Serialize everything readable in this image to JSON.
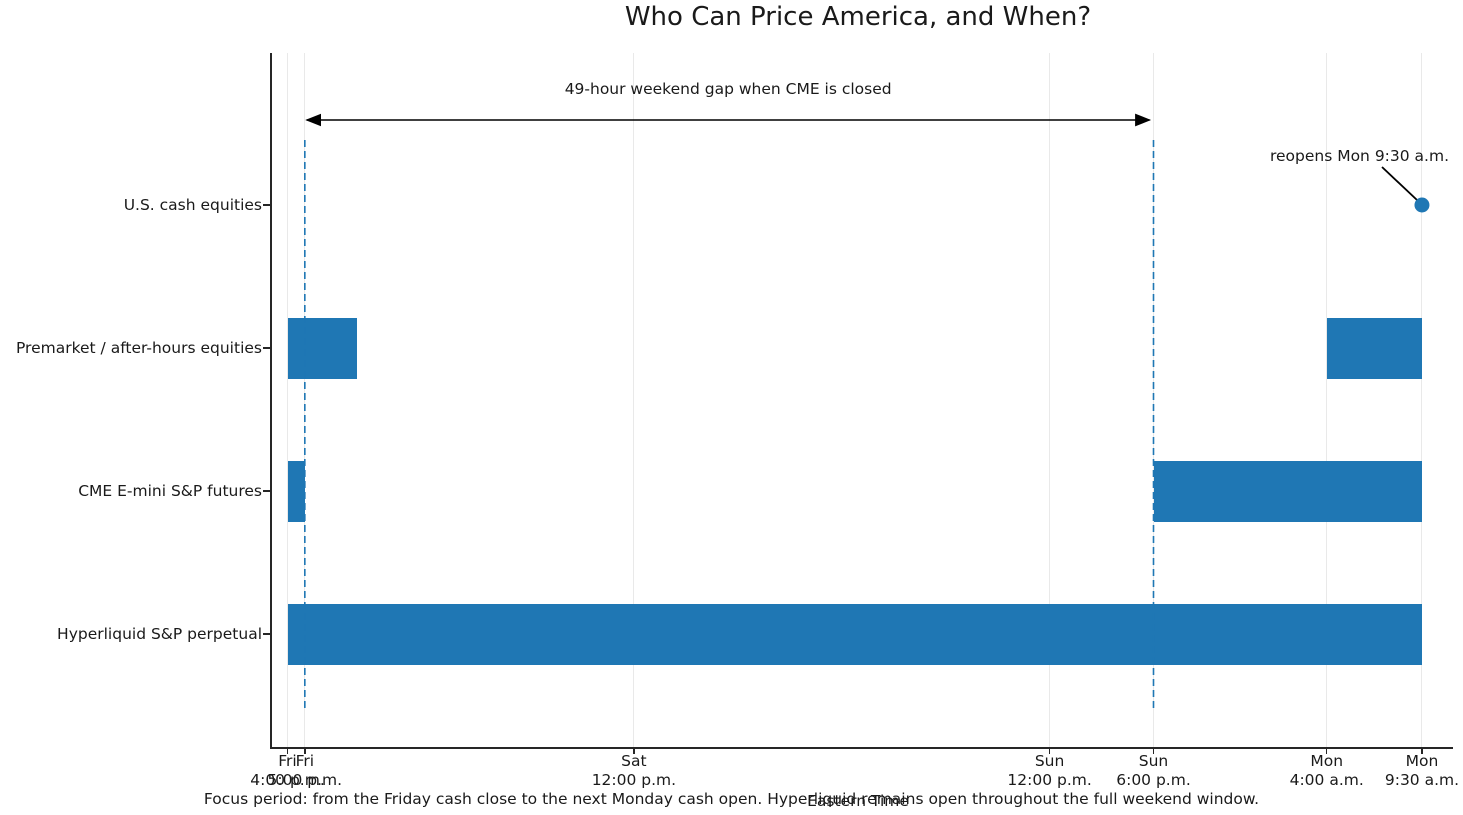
{
  "title": "Who Can Price America, and When?",
  "xlabel": "Eastern Time",
  "footer": "Focus period: from the Friday cash close to the next Monday cash open. Hyperliquid remains open throughout the full weekend window.",
  "annotations": {
    "gap_label": "49-hour weekend gap when CME is closed",
    "reopen_label": "reopens Mon 9:30 a.m."
  },
  "colors": {
    "bar": "#1f77b4",
    "dashed_line": "#1f77b4",
    "marker": "#1f77b4",
    "arrow": "#000000",
    "grid": "#e9e9e9",
    "text": "#1a1a1a"
  },
  "chart_data": {
    "type": "bar",
    "subtype": "horizontal-timeline (broken_barh gantt)",
    "x_unit": "hours since Friday 4:00 p.m. Eastern Time",
    "xlim": [
      -1,
      67.3
    ],
    "grid": "vertical gridlines at each x tick",
    "legend": "none",
    "ticks": [
      {
        "hour": 0,
        "day": "Fri",
        "time": "4:00 p.m."
      },
      {
        "hour": 1,
        "day": "Fri",
        "time": "5:00 p.m."
      },
      {
        "hour": 20,
        "day": "Sat",
        "time": "12:00 p.m."
      },
      {
        "hour": 44,
        "day": "Sun",
        "time": "12:00 p.m."
      },
      {
        "hour": 50,
        "day": "Sun",
        "time": "6:00 p.m."
      },
      {
        "hour": 60,
        "day": "Mon",
        "time": "4:00 a.m."
      },
      {
        "hour": 65.5,
        "day": "Mon",
        "time": "9:30 a.m."
      }
    ],
    "rows": [
      {
        "label": "U.S. cash equities",
        "intervals": [],
        "marker_hour": 65.5
      },
      {
        "label": "Premarket / after-hours equities",
        "intervals": [
          [
            0,
            4
          ],
          [
            60,
            65.5
          ]
        ]
      },
      {
        "label": "CME E-mini S&P futures",
        "intervals": [
          [
            0,
            1
          ],
          [
            50,
            65.5
          ]
        ]
      },
      {
        "label": "Hyperliquid S&P perpetual",
        "intervals": [
          [
            0,
            65.5
          ]
        ]
      }
    ],
    "dashed_hours": [
      1,
      50
    ],
    "gap_arrow": {
      "from_hour": 1,
      "to_hour": 50
    }
  }
}
